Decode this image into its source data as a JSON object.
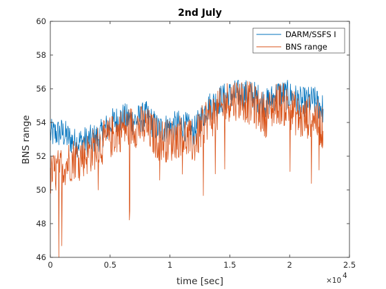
{
  "chart_data": {
    "type": "line",
    "title": "2nd July",
    "xlabel": "time [sec]",
    "ylabel": "BNS range",
    "x_exponent_label": "×10",
    "x_exponent_power": "4",
    "xlim": [
      0,
      25000
    ],
    "ylim": [
      46,
      60
    ],
    "x_ticks": [
      0,
      5000,
      10000,
      15000,
      20000,
      25000
    ],
    "x_tick_labels": [
      "0",
      "0.5",
      "1",
      "1.5",
      "2",
      "2.5"
    ],
    "y_ticks": [
      46,
      48,
      50,
      52,
      54,
      56,
      58,
      60
    ],
    "y_tick_labels": [
      "46",
      "48",
      "50",
      "52",
      "54",
      "56",
      "58",
      "60"
    ],
    "grid": false,
    "legend_position": "top-right",
    "series": [
      {
        "name": "DARM/SSFS I",
        "color": "#0072BD",
        "x": [
          0,
          1000,
          2000,
          3000,
          4000,
          5000,
          6000,
          7000,
          8000,
          9000,
          10000,
          11000,
          12000,
          13000,
          14000,
          15000,
          16000,
          17000,
          18000,
          19000,
          20000,
          21000,
          22000,
          22800
        ],
        "y": [
          53.3,
          53.4,
          52.8,
          52.9,
          53.1,
          53.9,
          54.3,
          54.1,
          54.4,
          53.6,
          53.7,
          53.9,
          53.4,
          54.8,
          55.3,
          55.6,
          55.7,
          55.6,
          55.1,
          55.7,
          55.6,
          55.2,
          55.3,
          54.8
        ]
      },
      {
        "name": "BNS range",
        "color": "#D95319",
        "x": [
          0,
          1000,
          2000,
          3000,
          4000,
          5000,
          6000,
          7000,
          8000,
          9000,
          10000,
          11000,
          12000,
          13000,
          14000,
          15000,
          16000,
          17000,
          18000,
          19000,
          20000,
          21000,
          22000,
          22800
        ],
        "y": [
          50.8,
          51.4,
          51.9,
          52.1,
          52.6,
          53.1,
          53.6,
          53.8,
          53.7,
          53.0,
          52.9,
          53.3,
          52.7,
          54.2,
          54.6,
          55.4,
          55.4,
          55.0,
          54.4,
          55.2,
          54.9,
          54.1,
          54.5,
          53.5
        ]
      }
    ]
  }
}
